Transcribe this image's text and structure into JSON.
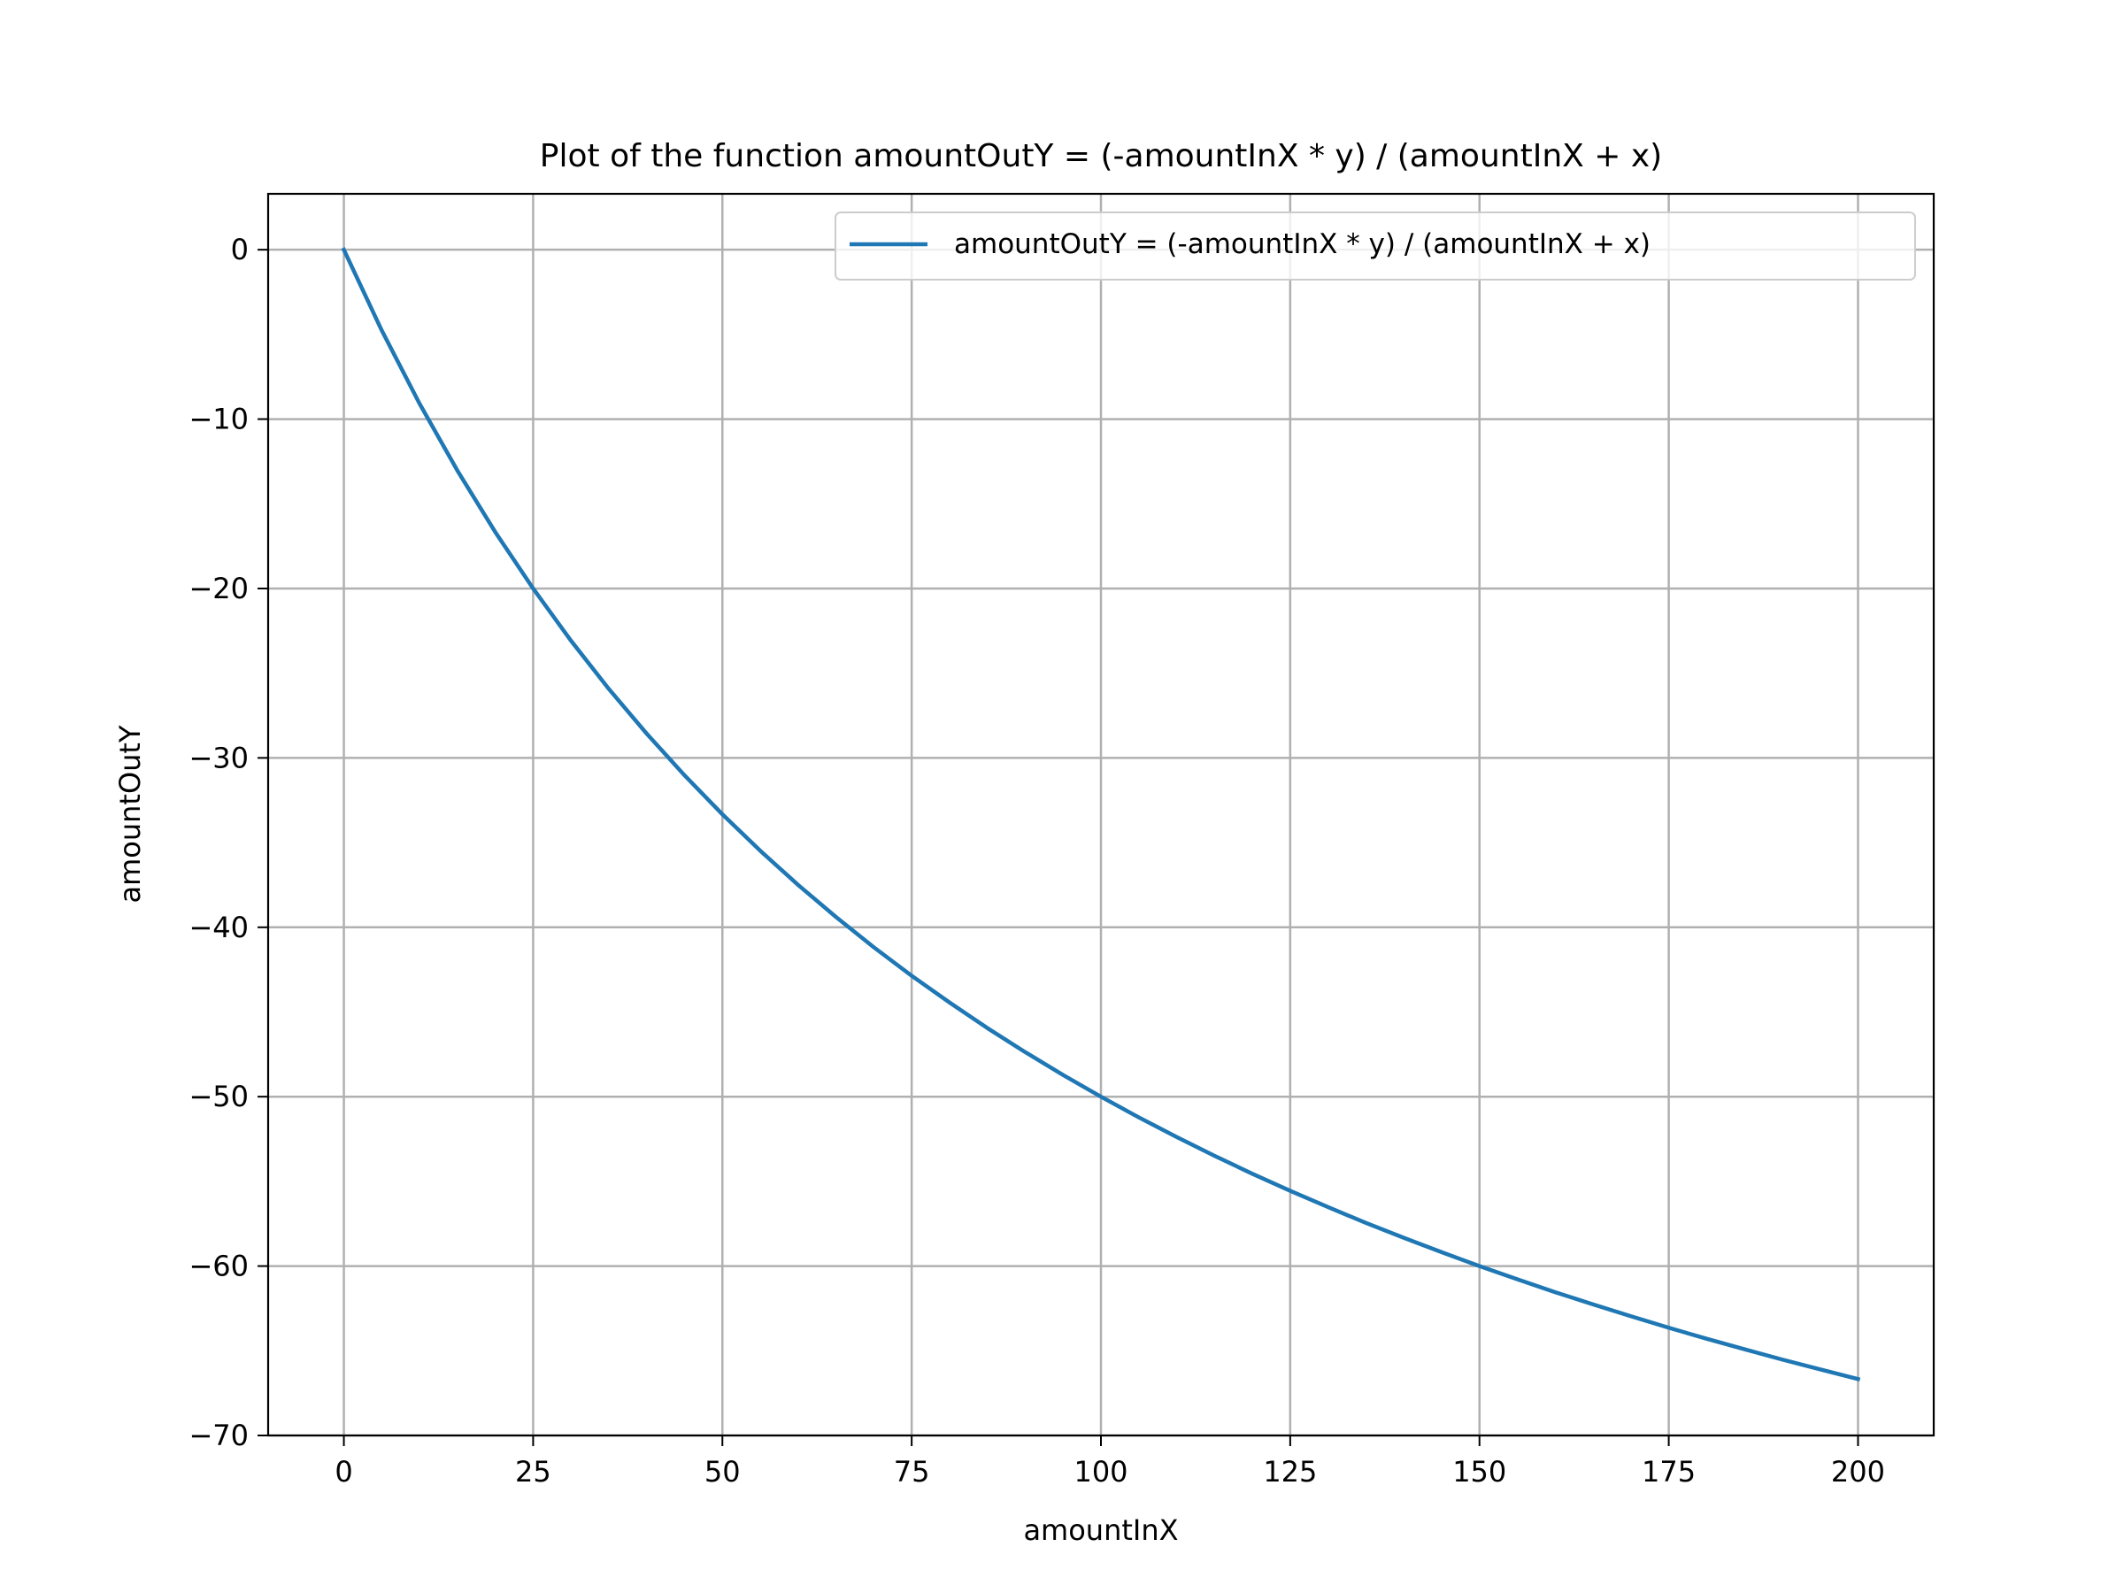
{
  "chart_data": {
    "type": "line",
    "title": "Plot of the function amountOutY = (-amountInX * y) / (amountInX + x)",
    "xlabel": "amountInX",
    "ylabel": "amountOutY",
    "xlim": [
      -10,
      210
    ],
    "ylim": [
      -70,
      3.3
    ],
    "xticks": [
      0,
      25,
      50,
      75,
      100,
      125,
      150,
      175,
      200
    ],
    "yticks": [
      0,
      -10,
      -20,
      -30,
      -40,
      -50,
      -60,
      -70
    ],
    "xtick_labels": [
      "0",
      "25",
      "50",
      "75",
      "100",
      "125",
      "150",
      "175",
      "200"
    ],
    "ytick_labels": [
      "0",
      "−10",
      "−20",
      "−30",
      "−40",
      "−50",
      "−60",
      "−70"
    ],
    "grid": true,
    "legend_position": "upper-right",
    "series": [
      {
        "name": "amountOutY = (-amountInX * y) / (amountInX + x)",
        "color": "#1f77b4",
        "x": [
          0,
          5,
          10,
          15,
          20,
          25,
          30,
          35,
          40,
          45,
          50,
          55,
          60,
          65,
          70,
          75,
          80,
          85,
          90,
          95,
          100,
          105,
          110,
          115,
          120,
          125,
          130,
          135,
          140,
          145,
          150,
          155,
          160,
          165,
          170,
          175,
          180,
          185,
          190,
          195,
          200
        ],
        "y": [
          0,
          -4.76,
          -9.09,
          -13.04,
          -16.67,
          -20,
          -23.08,
          -25.93,
          -28.57,
          -31.03,
          -33.33,
          -35.48,
          -37.5,
          -39.39,
          -41.18,
          -42.86,
          -44.44,
          -45.95,
          -47.37,
          -48.72,
          -50,
          -51.22,
          -52.38,
          -53.49,
          -54.55,
          -55.56,
          -56.52,
          -57.45,
          -58.33,
          -59.18,
          -60,
          -60.78,
          -61.54,
          -62.26,
          -62.96,
          -63.64,
          -64.29,
          -64.91,
          -65.52,
          -66.1,
          -66.67
        ]
      }
    ]
  }
}
